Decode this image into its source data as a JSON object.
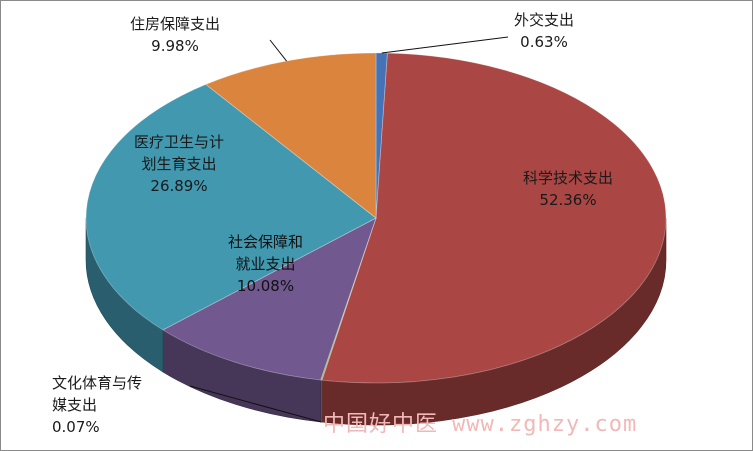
{
  "chart_data": {
    "type": "pie",
    "title": "",
    "slices": [
      {
        "name": "外交支出",
        "value": 0.63,
        "label": "0.63%",
        "color": "#4573b5"
      },
      {
        "name": "科学技术支出",
        "value": 52.36,
        "label": "52.36%",
        "color": "#aa4644"
      },
      {
        "name": "文化体育与传媒支出",
        "value": 0.07,
        "label": "0.07%",
        "color": "#89a54e"
      },
      {
        "name": "社会保障和就业支出",
        "value": 10.08,
        "label": "10.08%",
        "color": "#71588f"
      },
      {
        "name": "医疗卫生与计划生育支出",
        "value": 26.89,
        "label": "26.89%",
        "color": "#4198af"
      },
      {
        "name": "住房保障支出",
        "value": 9.98,
        "label": "9.98%",
        "color": "#db843d"
      }
    ],
    "label_lines": {
      "s0": [
        "外交支出"
      ],
      "s1": [
        "科学技术支出"
      ],
      "s2": [
        "文化体育与传",
        "媒支出"
      ],
      "s3": [
        "社会保障和",
        "就业支出"
      ],
      "s4": [
        "医疗卫生与计",
        "划生育支出"
      ],
      "s5": [
        "住房保障支出"
      ]
    },
    "legend": "none",
    "style": "3d"
  },
  "watermark": {
    "text": "中国好中医",
    "url": "www.zghzy.com"
  }
}
